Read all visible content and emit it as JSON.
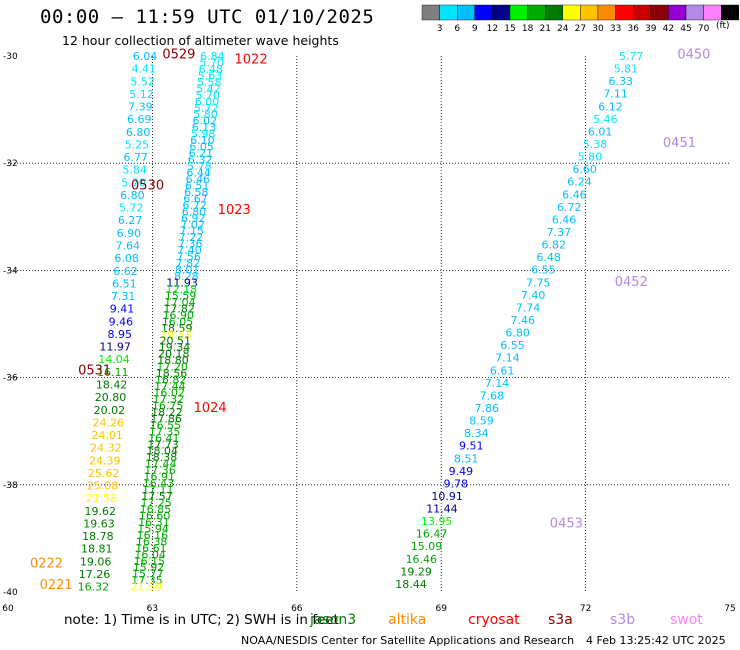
{
  "header": {
    "title": "00:00 – 11:59 UTC 01/10/2025",
    "subtitle": "12 hour collection of altimeter wave heights"
  },
  "footer": {
    "note": "note:  1) Time is in UTC;  2) SWH is in feet",
    "credit": "NOAA/NESDIS Center for Satellite Applications and Research",
    "timestamp": "4 Feb 13:25:42 UTC 2025"
  },
  "colorbar": {
    "unit": "(ft)",
    "labels": [
      "3",
      "6",
      "9",
      "12",
      "15",
      "18",
      "21",
      "24",
      "27",
      "30",
      "33",
      "36",
      "39",
      "42",
      "45",
      "70"
    ],
    "colors": [
      "#7f7f7f",
      "#00e5ff",
      "#00bfff",
      "#0000ff",
      "#00008b",
      "#00ee00",
      "#00aa00",
      "#007a00",
      "#ffff00",
      "#ffc200",
      "#ff8c00",
      "#ff0000",
      "#c80000",
      "#8b0000",
      "#9400d3",
      "#b28ae6",
      "#ff7fff",
      "#000000"
    ]
  },
  "missions": [
    {
      "name": "jason3",
      "color": "#007a00"
    },
    {
      "name": "altika",
      "color": "#ff8c00"
    },
    {
      "name": "cryosat",
      "color": "#ff0000"
    },
    {
      "name": "s3a",
      "color": "#8b0000"
    },
    {
      "name": "s3b",
      "color": "#b28ae6"
    },
    {
      "name": "swot",
      "color": "#ff7fff"
    }
  ],
  "chart_data": {
    "type": "scatter",
    "xlim": [
      60,
      75
    ],
    "ylim": [
      -40,
      -30
    ],
    "x_ticks": [
      "60",
      "63",
      "66",
      "69",
      "72",
      "75"
    ],
    "y_ticks": [
      "-30",
      "-32",
      "-34",
      "-36",
      "-38",
      "-40"
    ],
    "grid": true,
    "tracks": [
      {
        "x": [
          63.1,
          62.1
        ],
        "y": [
          -30.0,
          -39.9
        ],
        "labels": [
          "6.04",
          "4.41",
          "5.52",
          "5.12",
          "7.39",
          "6.69",
          "6.80",
          "5.25",
          "6.77",
          "5.84",
          "5.70",
          "6.80",
          "5.72",
          "6.27",
          "6.90",
          "7.64",
          "6.08",
          "6.62",
          "6.51",
          "7.31",
          "9.41",
          "9.46",
          "8.95",
          "11.97",
          "14.04",
          "16.11",
          "18.42",
          "20.80",
          "20.02",
          "24.26",
          "24.01",
          "24.32",
          "24.39",
          "25.62",
          "25.08",
          "21.58",
          "19.62",
          "19.63",
          "18.78",
          "18.81",
          "19.06",
          "17.26",
          "16.32"
        ],
        "colors": [
          "#00bfff",
          "#00e5ff",
          "#00e5ff",
          "#00e5ff",
          "#00bfff",
          "#00bfff",
          "#00bfff",
          "#00e5ff",
          "#00bfff",
          "#00e5ff",
          "#00e5ff",
          "#00bfff",
          "#00e5ff",
          "#00bfff",
          "#00bfff",
          "#00bfff",
          "#00bfff",
          "#00bfff",
          "#00bfff",
          "#00bfff",
          "#0000ff",
          "#0000ff",
          "#0000ff",
          "#00008b",
          "#00ee00",
          "#00aa00",
          "#007a00",
          "#007a00",
          "#007a00",
          "#ffc200",
          "#ffc200",
          "#ffc200",
          "#ffc200",
          "#ffc200",
          "#ffc200",
          "#ffff00",
          "#007a00",
          "#007a00",
          "#007a00",
          "#007a00",
          "#007a00",
          "#007a00",
          "#00aa00"
        ]
      },
      {
        "x": [
          64.5,
          63.2
        ],
        "y": [
          -30.0,
          -39.9
        ],
        "labels": [
          "6.84",
          "5.70",
          "6.48",
          "5.63",
          "5.58",
          "5.42",
          "5.70",
          "6.00",
          "5.72",
          "5.80",
          "6.02",
          "6.13",
          "5.98",
          "6.10",
          "6.05",
          "6.21",
          "6.32",
          "5.78",
          "6.44",
          "6.46",
          "6.51",
          "6.58",
          "6.67",
          "6.72",
          "6.80",
          "6.92",
          "7.02",
          "7.15",
          "7.22",
          "7.36",
          "7.40",
          "7.56",
          "7.82",
          "8.01",
          "8.28",
          "11.93",
          "12.18",
          "15.59",
          "17.04",
          "17.82",
          "16.90",
          "16.05",
          "18.59",
          "19.53",
          "20.51",
          "19.34",
          "20.18",
          "18.80",
          "17.20",
          "18.56",
          "16.82",
          "17.44",
          "16.02",
          "17.32",
          "16.75",
          "18.22",
          "17.86",
          "16.55",
          "17.35",
          "16.41",
          "17.73",
          "18.04",
          "18.38",
          "17.44",
          "17.36",
          "16.91",
          "16.43",
          "17.11",
          "17.57",
          "17.25",
          "16.85",
          "16.60",
          "16.31",
          "15.94",
          "16.16",
          "16.38",
          "16.61",
          "16.04",
          "16.15",
          "15.92",
          "15.77",
          "17.35",
          "21.89"
        ],
        "colors": [
          "#00e5ff",
          "#00e5ff",
          "#00e5ff",
          "#00e5ff",
          "#00e5ff",
          "#00e5ff",
          "#00e5ff",
          "#00e5ff",
          "#00e5ff",
          "#00e5ff",
          "#00bfff",
          "#00bfff",
          "#00e5ff",
          "#00bfff",
          "#00bfff",
          "#00bfff",
          "#00bfff",
          "#00e5ff",
          "#00bfff",
          "#00bfff",
          "#00bfff",
          "#00bfff",
          "#00bfff",
          "#00bfff",
          "#00bfff",
          "#00bfff",
          "#00bfff",
          "#00bfff",
          "#00bfff",
          "#00bfff",
          "#00bfff",
          "#00bfff",
          "#00bfff",
          "#00bfff",
          "#00bfff",
          "#00008b",
          "#00ee00",
          "#00aa00",
          "#00aa00",
          "#007a00",
          "#00aa00",
          "#00aa00",
          "#007a00",
          "#ffff00",
          "#007a00",
          "#007a00",
          "#007a00",
          "#007a00",
          "#00aa00",
          "#007a00",
          "#00aa00",
          "#00aa00",
          "#00aa00",
          "#00aa00",
          "#00aa00",
          "#007a00",
          "#007a00",
          "#00aa00",
          "#00aa00",
          "#00aa00",
          "#007a00",
          "#007a00",
          "#007a00",
          "#00aa00",
          "#00aa00",
          "#00aa00",
          "#00aa00",
          "#00aa00",
          "#007a00",
          "#00aa00",
          "#00aa00",
          "#00aa00",
          "#00aa00",
          "#00aa00",
          "#00aa00",
          "#00aa00",
          "#00aa00",
          "#00aa00",
          "#00aa00",
          "#00aa00",
          "#00aa00",
          "#00aa00",
          "#ffff00"
        ]
      },
      {
        "x": [
          73.2,
          68.7
        ],
        "y": [
          -30.0,
          -39.85
        ],
        "labels": [
          "5.77",
          "5.81",
          "6.33",
          "7.11",
          "6.12",
          "5.46",
          "6.01",
          "5.38",
          "5.80",
          "6.60",
          "6.24",
          "6.46",
          "6.72",
          "6.46",
          "7.37",
          "6.82",
          "6.48",
          "6.55",
          "7.75",
          "7.40",
          "7.74",
          "7.46",
          "6.80",
          "6.55",
          "7.14",
          "6.61",
          "7.14",
          "7.68",
          "7.86",
          "8.59",
          "8.34",
          "9.51",
          "8.51",
          "9.49",
          "9.78",
          "10.91",
          "11.44",
          "13.95",
          "16.47",
          "15.09",
          "16.46",
          "19.29",
          "18.44"
        ],
        "colors": [
          "#00e5ff",
          "#00e5ff",
          "#00bfff",
          "#00bfff",
          "#00bfff",
          "#00e5ff",
          "#00bfff",
          "#00e5ff",
          "#00e5ff",
          "#00bfff",
          "#00bfff",
          "#00bfff",
          "#00bfff",
          "#00bfff",
          "#00bfff",
          "#00bfff",
          "#00bfff",
          "#00bfff",
          "#00bfff",
          "#00bfff",
          "#00bfff",
          "#00bfff",
          "#00bfff",
          "#00bfff",
          "#00bfff",
          "#00bfff",
          "#00bfff",
          "#00bfff",
          "#00bfff",
          "#00bfff",
          "#00bfff",
          "#0000ff",
          "#00bfff",
          "#0000ff",
          "#0000ff",
          "#00008b",
          "#00008b",
          "#00ee00",
          "#00aa00",
          "#00aa00",
          "#00aa00",
          "#007a00",
          "#007a00"
        ]
      }
    ],
    "time_labels": [
      {
        "text": "0529",
        "x": 63.55,
        "y": -29.95,
        "color": "#8b0000"
      },
      {
        "text": "1022",
        "x": 65.05,
        "y": -30.05,
        "color": "#ff0000"
      },
      {
        "text": "0530",
        "x": 62.9,
        "y": -32.4,
        "color": "#8b0000"
      },
      {
        "text": "1023",
        "x": 64.7,
        "y": -32.85,
        "color": "#ff0000"
      },
      {
        "text": "0531",
        "x": 61.8,
        "y": -35.85,
        "color": "#8b0000"
      },
      {
        "text": "1024",
        "x": 64.2,
        "y": -36.55,
        "color": "#ff0000"
      },
      {
        "text": "0222",
        "x": 60.8,
        "y": -39.45,
        "color": "#ff8c00"
      },
      {
        "text": "0221",
        "x": 61.0,
        "y": -39.85,
        "color": "#ff8c00"
      },
      {
        "text": "0450",
        "x": 74.25,
        "y": -29.95,
        "color": "#b28ae6"
      },
      {
        "text": "0451",
        "x": 73.95,
        "y": -31.6,
        "color": "#b28ae6"
      },
      {
        "text": "0452",
        "x": 72.95,
        "y": -34.2,
        "color": "#b28ae6"
      },
      {
        "text": "0453",
        "x": 71.6,
        "y": -38.7,
        "color": "#b28ae6"
      }
    ]
  }
}
